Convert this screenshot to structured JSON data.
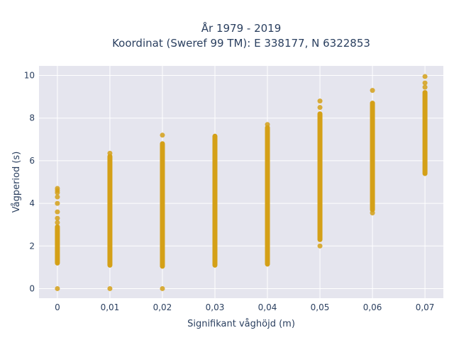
{
  "chart_data": {
    "type": "scatter",
    "title": "År 1979 - 2019",
    "subtitle": "Koordinat (Sweref 99 TM): E 338177, N 6322853",
    "xlabel": "Signifikant våghöjd (m)",
    "ylabel": "Vågperiod (s)",
    "xlim": [
      -0.0035,
      0.0735
    ],
    "ylim": [
      -0.45,
      10.45
    ],
    "x_ticks": [
      0,
      0.01,
      0.02,
      0.03,
      0.04,
      0.05,
      0.06,
      0.07
    ],
    "x_tick_labels": [
      "0",
      "0,01",
      "0,02",
      "0,03",
      "0,04",
      "0,05",
      "0,06",
      "0,07"
    ],
    "y_ticks": [
      0,
      2,
      4,
      6,
      8,
      10
    ],
    "y_tick_labels": [
      "0",
      "2",
      "4",
      "6",
      "8",
      "10"
    ],
    "grid": true,
    "marker_color": "#D4A017",
    "plot_bg": "#E5E5EE",
    "series": [
      {
        "points_by_x": [
          {
            "x": 0.0,
            "band": [
              1.2,
              2.9
            ],
            "outliers": [
              0.0,
              3.1,
              3.3,
              3.6,
              4.0,
              4.3,
              4.5,
              4.6,
              4.7
            ]
          },
          {
            "x": 0.01,
            "band": [
              1.1,
              6.2
            ],
            "outliers": [
              0.0,
              6.35
            ]
          },
          {
            "x": 0.02,
            "band": [
              1.05,
              6.8
            ],
            "outliers": [
              0.0,
              7.2
            ]
          },
          {
            "x": 0.03,
            "band": [
              1.1,
              7.15
            ],
            "outliers": []
          },
          {
            "x": 0.04,
            "band": [
              1.15,
              7.55
            ],
            "outliers": [
              7.7
            ]
          },
          {
            "x": 0.05,
            "band": [
              2.3,
              8.2
            ],
            "outliers": [
              2.0,
              8.5,
              8.8
            ]
          },
          {
            "x": 0.06,
            "band": [
              3.7,
              8.7
            ],
            "outliers": [
              3.55,
              9.3
            ]
          },
          {
            "x": 0.07,
            "band": [
              5.4,
              9.2
            ],
            "outliers": [
              9.45,
              9.65,
              9.95
            ]
          }
        ]
      }
    ]
  }
}
